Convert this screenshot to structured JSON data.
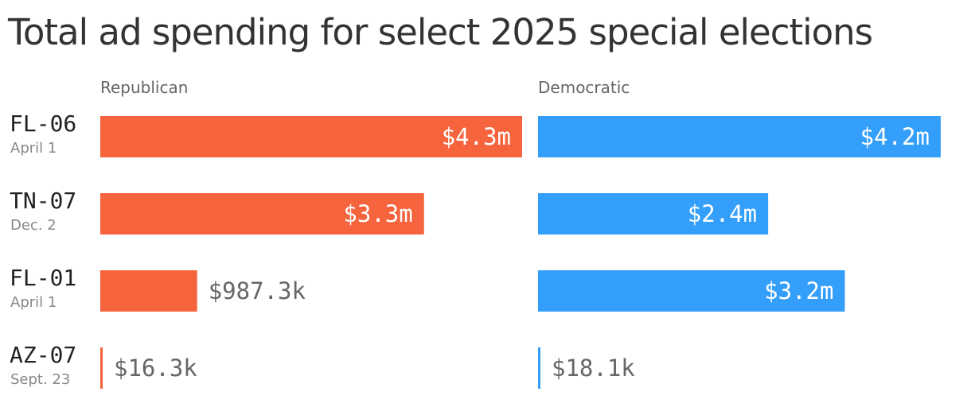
{
  "chart_data": {
    "type": "bar",
    "title": "Total ad spending for select 2025 special elections",
    "unit": "USD",
    "categories": [
      "FL-06",
      "TN-07",
      "FL-01",
      "AZ-07"
    ],
    "dates": [
      "April 1",
      "Dec. 2",
      "April 1",
      "Sept. 23"
    ],
    "series": [
      {
        "name": "Republican",
        "color": "#f5643c",
        "values": [
          4300000,
          3300000,
          987300,
          16300
        ],
        "labels": [
          "$4.3m",
          "$3.3m",
          "$987.3k",
          "$16.3k"
        ]
      },
      {
        "name": "Democratic",
        "color": "#349ffa",
        "values": [
          4200000,
          2400000,
          3200000,
          18100
        ],
        "labels": [
          "$4.2m",
          "$2.4m",
          "$3.2m",
          "$18.1k"
        ]
      }
    ],
    "xlim": [
      0,
      4300000
    ],
    "grid": false,
    "legend": "none"
  }
}
